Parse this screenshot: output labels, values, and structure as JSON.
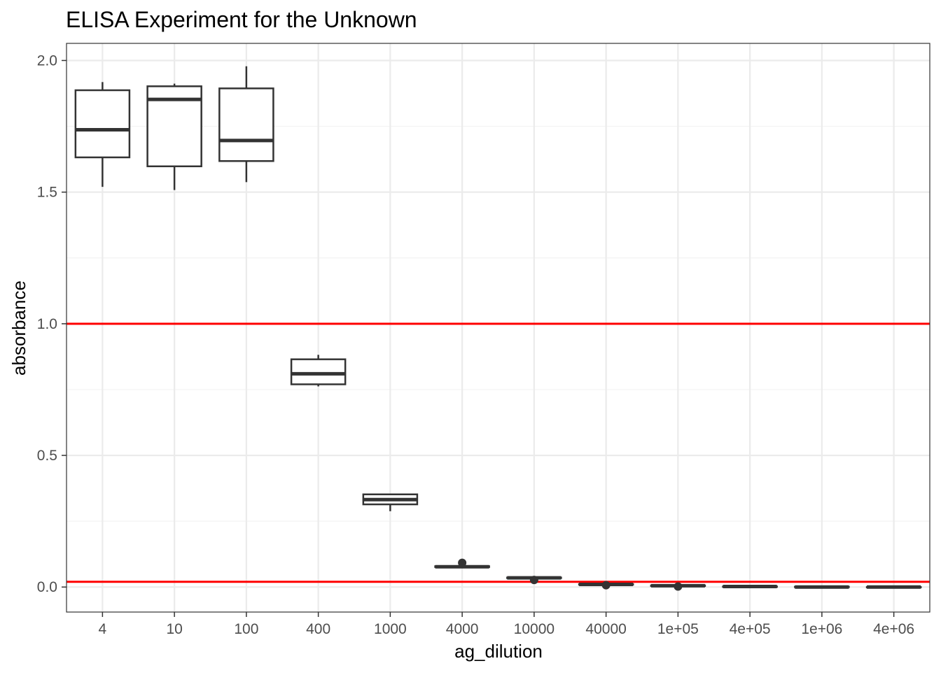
{
  "chart_data": {
    "type": "boxplot",
    "title": "ELISA Experiment for the Unknown",
    "xlabel": "ag_dilution",
    "ylabel": "absorbance",
    "ylim": [
      -0.095,
      2.065
    ],
    "yticks": [
      0.0,
      0.5,
      1.0,
      1.5,
      2.0
    ],
    "ytick_labels": [
      "0.0",
      "0.5",
      "1.0",
      "1.5",
      "2.0"
    ],
    "grid": true,
    "categories": [
      "4",
      "10",
      "100",
      "400",
      "1000",
      "4000",
      "10000",
      "40000",
      "1e+05",
      "4e+05",
      "1e+06",
      "4e+06"
    ],
    "boxes": [
      {
        "category": "4",
        "min": 1.52,
        "q1": 1.632,
        "median": 1.737,
        "q3": 1.887,
        "max": 1.918,
        "outliers": []
      },
      {
        "category": "10",
        "min": 1.508,
        "q1": 1.598,
        "median": 1.852,
        "q3": 1.902,
        "max": 1.912,
        "outliers": []
      },
      {
        "category": "100",
        "min": 1.538,
        "q1": 1.618,
        "median": 1.696,
        "q3": 1.894,
        "max": 1.978,
        "outliers": []
      },
      {
        "category": "400",
        "min": 0.762,
        "q1": 0.77,
        "median": 0.81,
        "q3": 0.865,
        "max": 0.882,
        "outliers": []
      },
      {
        "category": "1000",
        "min": 0.288,
        "q1": 0.314,
        "median": 0.332,
        "q3": 0.352,
        "max": 0.355,
        "outliers": []
      },
      {
        "category": "4000",
        "min": 0.075,
        "q1": 0.076,
        "median": 0.077,
        "q3": 0.079,
        "max": 0.08,
        "outliers": [
          0.092
        ]
      },
      {
        "category": "10000",
        "min": 0.033,
        "q1": 0.034,
        "median": 0.035,
        "q3": 0.036,
        "max": 0.036,
        "outliers": [
          0.027
        ]
      },
      {
        "category": "40000",
        "min": 0.008,
        "q1": 0.009,
        "median": 0.01,
        "q3": 0.011,
        "max": 0.012,
        "outliers": [
          0.007
        ]
      },
      {
        "category": "1e+05",
        "min": 0.003,
        "q1": 0.004,
        "median": 0.005,
        "q3": 0.006,
        "max": 0.007,
        "outliers": [
          0.002
        ]
      },
      {
        "category": "4e+05",
        "min": 0.001,
        "q1": 0.001,
        "median": 0.002,
        "q3": 0.002,
        "max": 0.003,
        "outliers": []
      },
      {
        "category": "1e+06",
        "min": 0.0,
        "q1": 0.0,
        "median": 0.0,
        "q3": 0.001,
        "max": 0.001,
        "outliers": []
      },
      {
        "category": "4e+06",
        "min": 0.0,
        "q1": 0.0,
        "median": 0.0,
        "q3": 0.0,
        "max": 0.001,
        "outliers": []
      }
    ],
    "hlines": [
      {
        "value": 1.0,
        "color": "#ff0000"
      },
      {
        "value": 0.02,
        "color": "#ff0000"
      }
    ],
    "colors": {
      "box": "#333333",
      "panel_border": "#333333",
      "grid_major": "#ebebeb",
      "grid_minor": "#f3f3f3",
      "text": "#000000",
      "tick_text": "#4d4d4d"
    }
  }
}
